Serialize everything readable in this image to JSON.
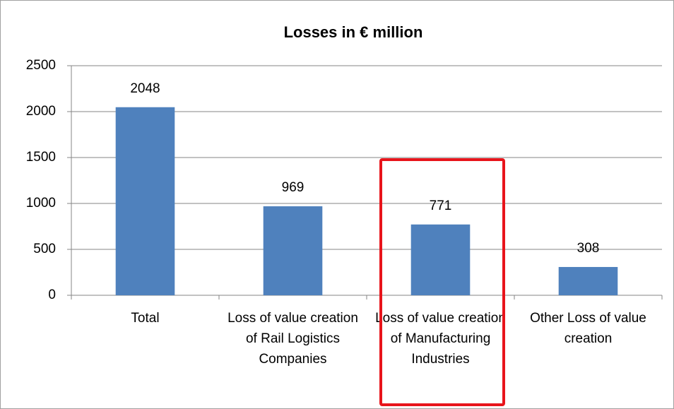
{
  "chart_data": {
    "type": "bar",
    "title": "Losses in € million",
    "categories": [
      "Total",
      "Loss of value creation of Rail Logistics Companies",
      "Loss of value creation of Manufacturing Industries",
      "Other Loss of value creation"
    ],
    "values": [
      2048,
      969,
      771,
      308
    ],
    "color": "#4f81bd",
    "ylim": [
      0,
      2500
    ],
    "yticks": [
      0,
      500,
      1000,
      1500,
      2000,
      2500
    ],
    "grid": true
  }
}
